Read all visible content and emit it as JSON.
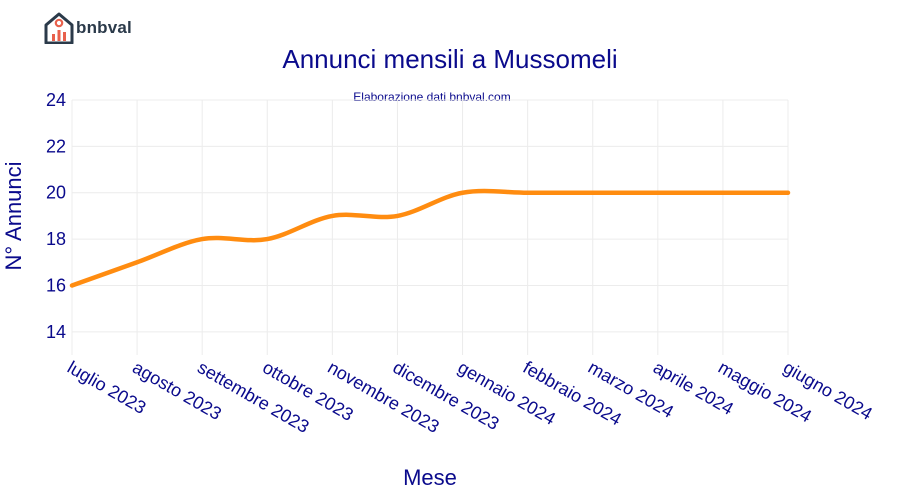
{
  "brand": {
    "name": "bnbval",
    "logo_icon": "house-chart-icon",
    "colors": {
      "house": "#2b3a4a",
      "bars": "#e8604c"
    }
  },
  "chart_data": {
    "type": "line",
    "title": "Annunci mensili a Mussomeli",
    "subtitle": "Elaborazione dati bnbval.com",
    "xlabel": "Mese",
    "ylabel": "N° Annunci",
    "categories": [
      "luglio 2023",
      "agosto 2023",
      "settembre 2023",
      "ottobre 2023",
      "novembre 2023",
      "dicembre 2023",
      "gennaio 2024",
      "febbraio 2024",
      "marzo 2024",
      "aprile 2024",
      "maggio 2024",
      "giugno 2024"
    ],
    "series": [
      {
        "values": [
          16,
          17,
          18,
          18,
          19,
          19,
          20,
          20,
          20,
          20,
          20,
          20
        ],
        "color": "#ff8c10"
      }
    ],
    "ylim": [
      13,
      24
    ],
    "yticks": [
      14,
      16,
      18,
      20,
      22,
      24
    ],
    "grid": true,
    "line_shape": "spline"
  }
}
